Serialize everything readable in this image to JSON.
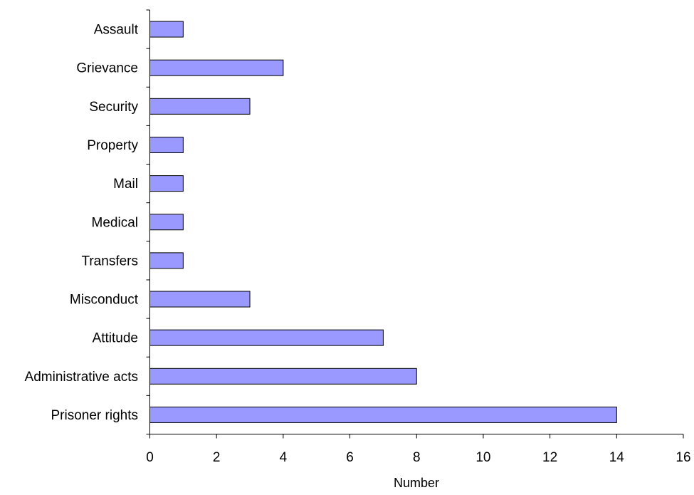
{
  "chart_data": {
    "type": "bar",
    "orientation": "horizontal",
    "categories": [
      "Assault",
      "Grievance",
      "Security",
      "Property",
      "Mail",
      "Medical",
      "Transfers",
      "Misconduct",
      "Attitude",
      "Administrative acts",
      "Prisoner rights"
    ],
    "values": [
      1,
      4,
      3,
      1,
      1,
      1,
      1,
      3,
      7,
      8,
      14
    ],
    "xlabel": "Number",
    "ylabel": "",
    "title": "",
    "xlim": [
      0,
      16
    ],
    "xticks": [
      0,
      2,
      4,
      6,
      8,
      10,
      12,
      14,
      16
    ],
    "grid": false,
    "legend": "none",
    "colors": {
      "bar_fill": "#9999ff",
      "bar_stroke": "#000000",
      "axis": "#000000",
      "background": "#ffffff"
    }
  }
}
